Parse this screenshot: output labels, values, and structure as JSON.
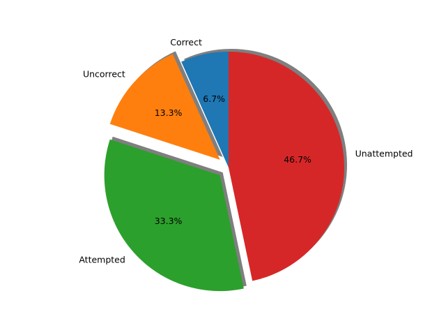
{
  "chart_data": {
    "type": "pie",
    "slices": [
      {
        "label": "Correct",
        "value": 6.7,
        "pct_label": "6.7%",
        "color": "#1f77b4",
        "exploded": false
      },
      {
        "label": "Uncorrect",
        "value": 13.3,
        "pct_label": "13.3%",
        "color": "#ff7f0e",
        "exploded": true
      },
      {
        "label": "Attempted",
        "value": 33.3,
        "pct_label": "33.3%",
        "color": "#2ca02c",
        "exploded": true
      },
      {
        "label": "Unattempted",
        "value": 46.7,
        "pct_label": "46.7%",
        "color": "#d62728",
        "exploded": false
      }
    ],
    "start_angle_deg": 90,
    "direction": "counterclockwise",
    "shadow": true
  }
}
